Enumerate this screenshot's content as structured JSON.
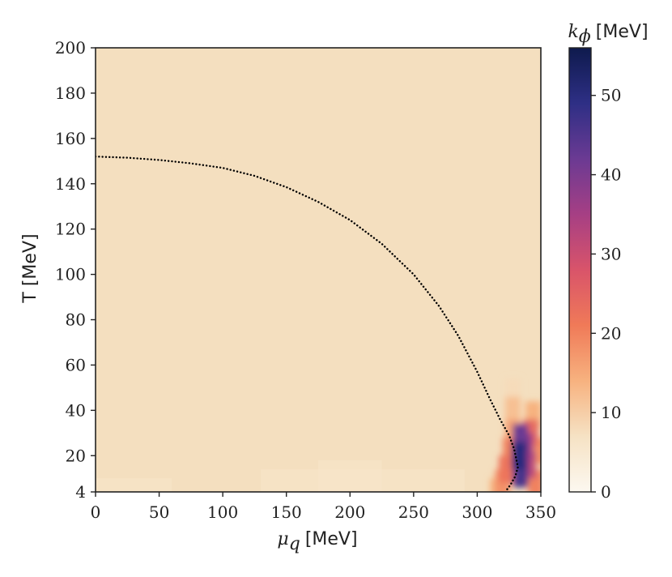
{
  "chart_data": {
    "type": "heatmap",
    "title": "",
    "xlabel": {
      "symbol": "μ",
      "subscript": "q",
      "unit": "[MeV]"
    },
    "ylabel": "T [MeV]",
    "xlim": [
      0,
      350
    ],
    "ylim": [
      4,
      200
    ],
    "x_ticks": [
      "0",
      "50",
      "100",
      "150",
      "200",
      "250",
      "300",
      "350"
    ],
    "y_ticks": [
      "4",
      "20",
      "40",
      "60",
      "80",
      "100",
      "120",
      "140",
      "160",
      "180",
      "200"
    ],
    "colorbar": {
      "label": {
        "symbol": "k",
        "subscript": "ϕ",
        "unit": "[MeV]"
      },
      "range": [
        0,
        56
      ],
      "ticks": [
        "0",
        "10",
        "20",
        "30",
        "40",
        "50"
      ],
      "colormap": [
        "#fcf8f0",
        "#f6e2c4",
        "#f7b27f",
        "#f07a58",
        "#d9546a",
        "#a63f84",
        "#6b3a93",
        "#2e2f85",
        "#0e1a4d"
      ],
      "background_color": "#f4dfbf"
    },
    "phase_boundary": {
      "style": "dotted",
      "points": [
        [
          0,
          152
        ],
        [
          25,
          151.5
        ],
        [
          50,
          150.5
        ],
        [
          75,
          149
        ],
        [
          100,
          147
        ],
        [
          125,
          143.5
        ],
        [
          150,
          138.5
        ],
        [
          175,
          132
        ],
        [
          200,
          124
        ],
        [
          225,
          113.5
        ],
        [
          250,
          100
        ],
        [
          270,
          86
        ],
        [
          285,
          73
        ],
        [
          300,
          57
        ],
        [
          310,
          45
        ],
        [
          318,
          36
        ],
        [
          325,
          29
        ],
        [
          329,
          23
        ],
        [
          332,
          15
        ],
        [
          330,
          11
        ],
        [
          326,
          7
        ],
        [
          322,
          4
        ]
      ]
    },
    "hot_region": [
      {
        "mu": 316,
        "T": 4,
        "k": 14
      },
      {
        "mu": 320,
        "T": 8,
        "k": 18
      },
      {
        "mu": 323,
        "T": 14,
        "k": 22
      },
      {
        "mu": 326,
        "T": 22,
        "k": 20
      },
      {
        "mu": 328,
        "T": 30,
        "k": 16
      },
      {
        "mu": 328,
        "T": 40,
        "k": 12
      },
      {
        "mu": 328,
        "T": 48,
        "k": 8
      },
      {
        "mu": 333,
        "T": 20,
        "k": 50
      },
      {
        "mu": 334,
        "T": 28,
        "k": 42
      },
      {
        "mu": 334,
        "T": 12,
        "k": 46
      },
      {
        "mu": 338,
        "T": 24,
        "k": 36
      },
      {
        "mu": 340,
        "T": 16,
        "k": 32
      },
      {
        "mu": 342,
        "T": 30,
        "k": 24
      },
      {
        "mu": 344,
        "T": 38,
        "k": 14
      },
      {
        "mu": 346,
        "T": 8,
        "k": 20
      },
      {
        "mu": 348,
        "T": 22,
        "k": 18
      }
    ],
    "low_T_bands": [
      {
        "mu_start": 0,
        "mu_end": 60,
        "T_max": 10,
        "k": 6
      },
      {
        "mu_start": 130,
        "mu_end": 290,
        "T_max": 14,
        "k": 6
      },
      {
        "mu_start": 175,
        "mu_end": 225,
        "T_max": 18,
        "k": 6
      }
    ]
  }
}
